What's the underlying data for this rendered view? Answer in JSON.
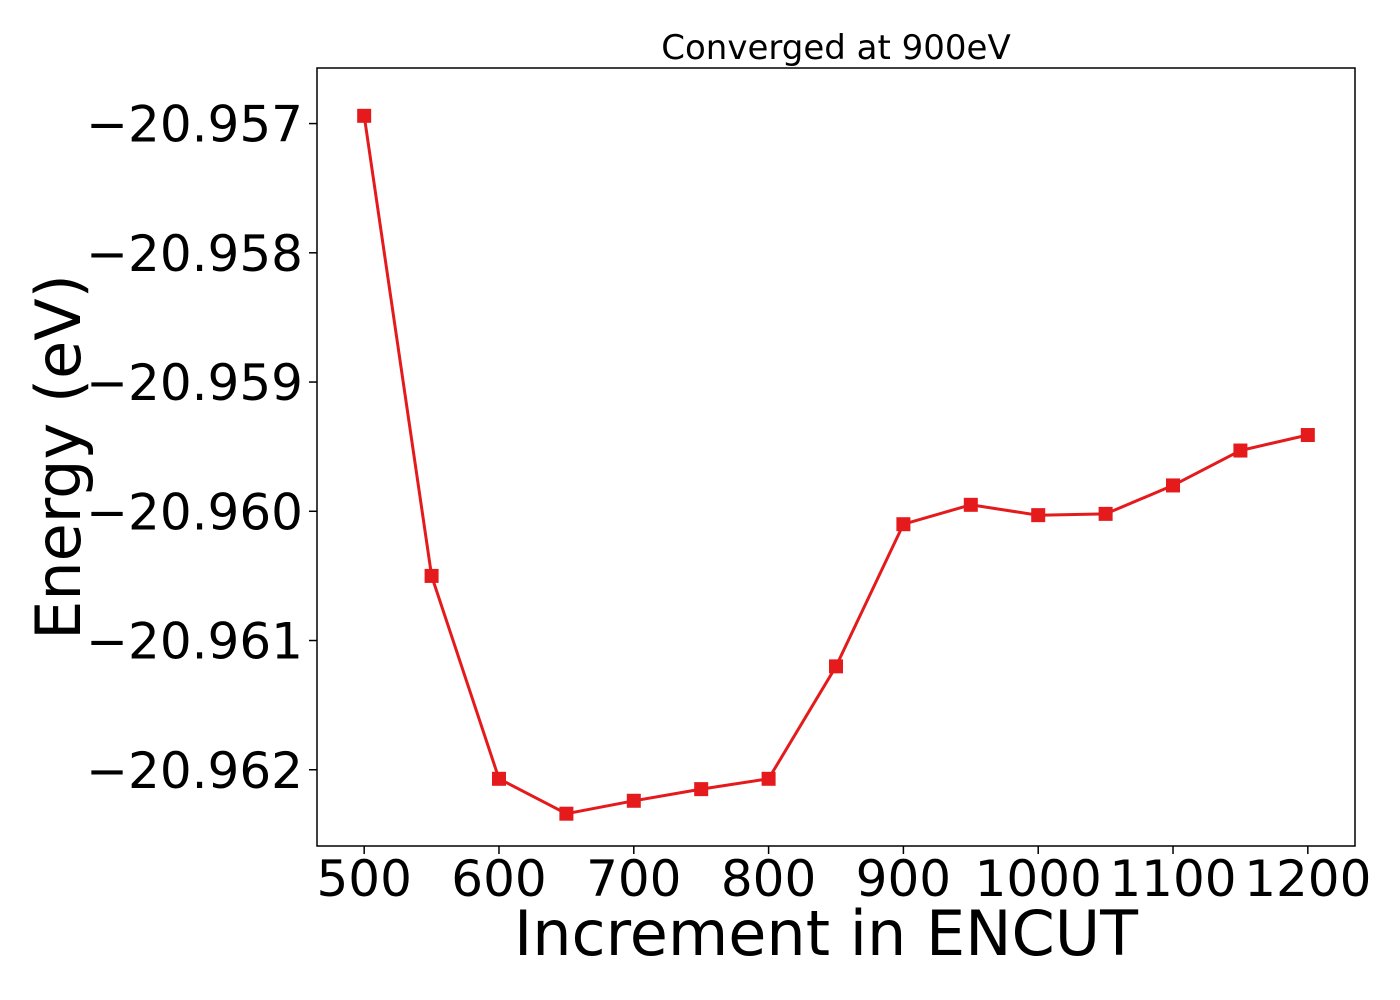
{
  "chart_data": {
    "type": "line",
    "title": "Converged at 900eV",
    "xlabel": "Increment in ENCUT",
    "ylabel": "Energy (eV)",
    "xlim": [
      465,
      1235
    ],
    "ylim": [
      -20.96259,
      -20.95657
    ],
    "x_ticks": [
      500,
      600,
      700,
      800,
      900,
      1000,
      1100,
      1200
    ],
    "x_tick_labels": [
      "500",
      "600",
      "700",
      "800",
      "900",
      "1000",
      "1100",
      "1200"
    ],
    "y_ticks": [
      -20.957,
      -20.958,
      -20.959,
      -20.96,
      -20.961,
      -20.962
    ],
    "y_tick_labels": [
      "−20.957",
      "−20.958",
      "−20.959",
      "−20.960",
      "−20.961",
      "−20.962"
    ],
    "grid": false,
    "series": [
      {
        "color": "#e41a1c",
        "marker": "square",
        "x": [
          500,
          550,
          600,
          650,
          700,
          750,
          800,
          850,
          900,
          950,
          1000,
          1050,
          1100,
          1150,
          1200
        ],
        "y": [
          -20.95694,
          -20.9605,
          -20.96207,
          -20.96234,
          -20.96224,
          -20.96215,
          -20.96207,
          -20.9612,
          -20.9601,
          -20.95995,
          -20.96003,
          -20.96002,
          -20.9598,
          -20.95953,
          -20.95941
        ]
      }
    ]
  }
}
